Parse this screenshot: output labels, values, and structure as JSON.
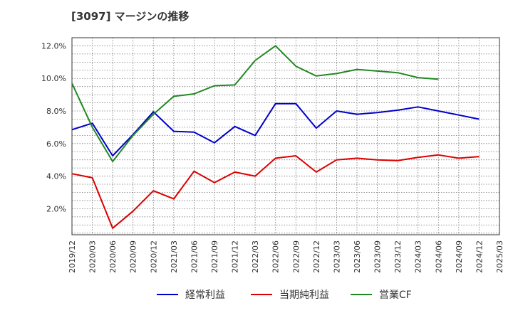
{
  "chart_data": {
    "type": "line",
    "title": "[3097]  マージンの推移",
    "x": [
      "2019/12",
      "2020/03",
      "2020/06",
      "2020/09",
      "2020/12",
      "2021/03",
      "2021/06",
      "2021/09",
      "2021/12",
      "2022/03",
      "2022/06",
      "2022/09",
      "2022/12",
      "2023/03",
      "2023/06",
      "2023/09",
      "2023/12",
      "2024/03",
      "2024/06",
      "2024/09",
      "2024/12",
      "2025/03"
    ],
    "yticks": [
      "2.0%",
      "4.0%",
      "6.0%",
      "8.0%",
      "10.0%",
      "12.0%"
    ],
    "ylim": [
      0.4,
      12.5
    ],
    "grid": true,
    "legend_position": "bottom",
    "series": [
      {
        "name": "経常利益",
        "color": "#0000cc",
        "values": [
          6.85,
          7.25,
          5.25,
          6.55,
          7.95,
          6.75,
          6.7,
          6.05,
          7.05,
          6.5,
          8.45,
          8.45,
          6.95,
          8.0,
          7.8,
          7.9,
          8.05,
          8.25,
          8.0,
          7.75,
          7.5,
          null
        ]
      },
      {
        "name": "当期純利益",
        "color": "#dd0000",
        "values": [
          4.15,
          3.9,
          0.8,
          1.85,
          3.1,
          2.6,
          4.3,
          3.6,
          4.25,
          4.0,
          5.1,
          5.25,
          4.25,
          5.0,
          5.1,
          5.0,
          4.95,
          5.15,
          5.3,
          5.1,
          5.2,
          null
        ]
      },
      {
        "name": "営業CF",
        "color": "#228822",
        "values": [
          9.7,
          7.0,
          4.9,
          6.5,
          7.8,
          8.9,
          9.05,
          9.55,
          9.6,
          11.1,
          12.0,
          10.75,
          10.15,
          10.3,
          10.55,
          10.45,
          10.35,
          10.05,
          9.95,
          null,
          null,
          null
        ]
      }
    ]
  }
}
